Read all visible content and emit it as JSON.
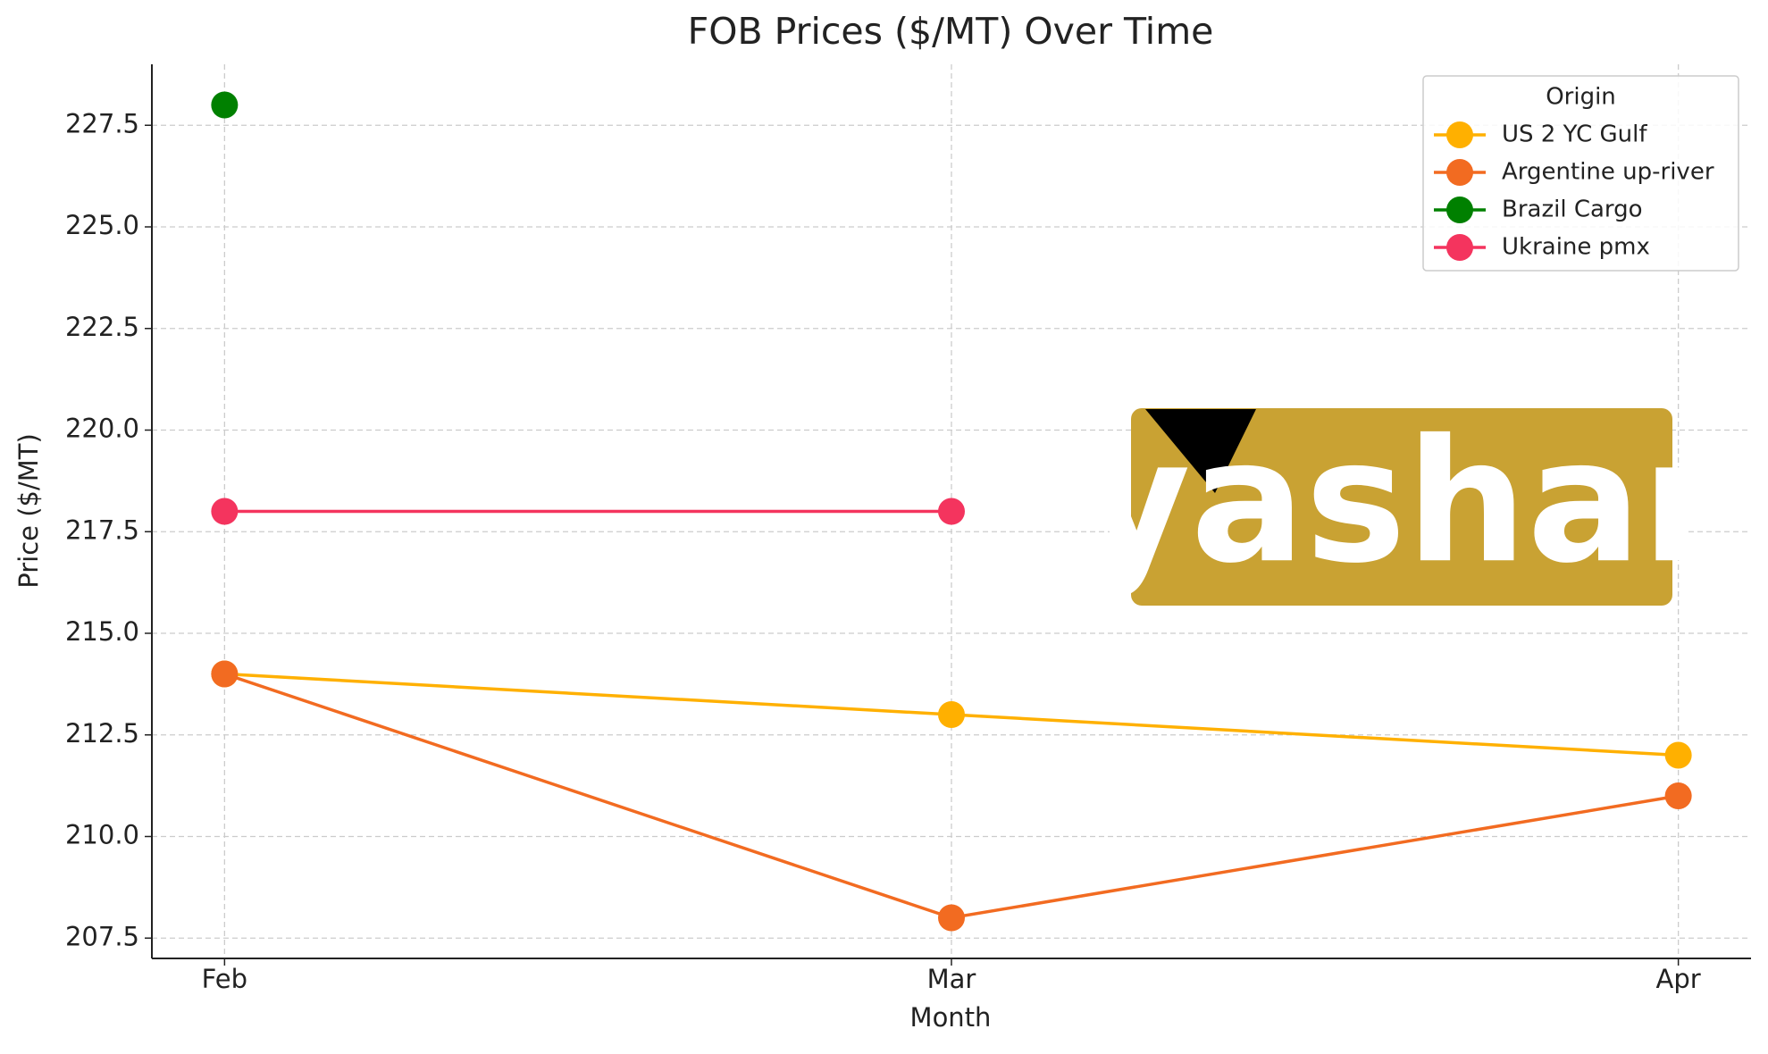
{
  "chart_data": {
    "type": "line",
    "title": "FOB Prices ($/MT) Over Time",
    "x_label": "Month",
    "y_label": "Price ($/MT)",
    "categories": [
      "Feb",
      "Mar",
      "Apr"
    ],
    "series": [
      {
        "name": "US 2 YC Gulf",
        "color": "#FFB000",
        "values": [
          214,
          213,
          212
        ]
      },
      {
        "name": "Argentine up-river",
        "color": "#F26B21",
        "values": [
          214,
          208,
          211
        ]
      },
      {
        "name": "Brazil Cargo",
        "color": "#008000",
        "values": [
          228,
          null,
          null
        ]
      },
      {
        "name": "Ukraine pmx",
        "color": "#F4345E",
        "values": [
          218,
          218,
          null
        ]
      }
    ],
    "ylim": [
      207,
      229
    ],
    "yticks": [
      207.5,
      {
        "value": 210,
        "label": "210.0"
      },
      212.5,
      {
        "value": 215,
        "label": "215.0"
      },
      217.5,
      {
        "value": 220,
        "label": "220.0"
      },
      222.5,
      {
        "value": 225,
        "label": "225.0"
      },
      227.5
    ],
    "grid": true,
    "legend_title": "Origin",
    "legend_position": "upper right",
    "watermark": "yashar"
  }
}
